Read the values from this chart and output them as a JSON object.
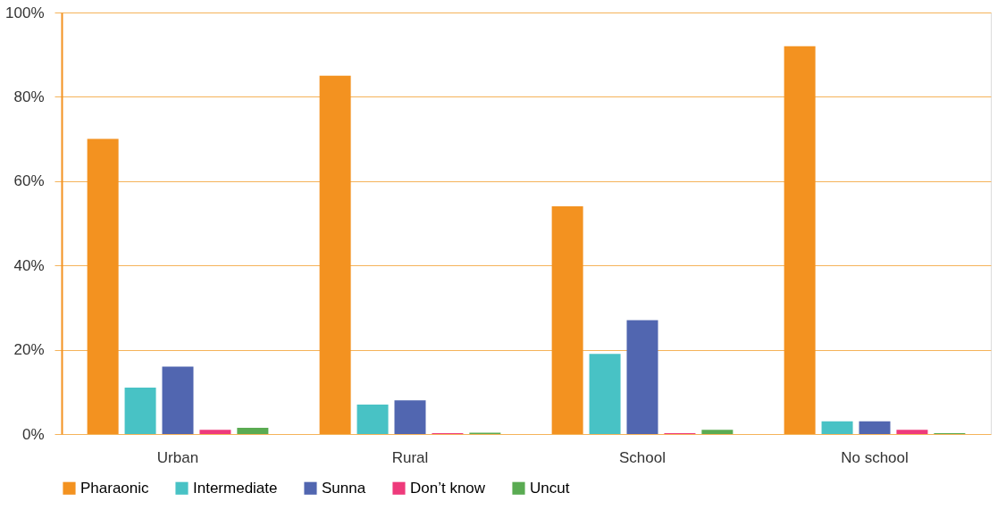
{
  "chart_data": {
    "type": "bar",
    "categories": [
      "Urban",
      "Rural",
      "School",
      "No school"
    ],
    "series": [
      {
        "name": "Pharaonic",
        "color": "#f39220",
        "values": [
          70,
          85,
          54,
          92
        ]
      },
      {
        "name": "Intermediate",
        "color": "#48c2c5",
        "values": [
          11,
          7,
          19,
          3
        ]
      },
      {
        "name": "Sunna",
        "color": "#5166b0",
        "values": [
          16,
          8,
          27,
          3
        ]
      },
      {
        "name": "Don’t know",
        "color": "#ee3a7b",
        "values": [
          1,
          0.2,
          0.2,
          1
        ]
      },
      {
        "name": "Uncut",
        "color": "#5aab52",
        "values": [
          1.5,
          0.3,
          1,
          0.2
        ]
      }
    ],
    "ylim": [
      0,
      100
    ],
    "yticks": [
      {
        "value": 0,
        "label": "0%"
      },
      {
        "value": 20,
        "label": "20%"
      },
      {
        "value": 40,
        "label": "40%"
      },
      {
        "value": 60,
        "label": "60%"
      },
      {
        "value": 80,
        "label": "80%"
      },
      {
        "value": 100,
        "label": "100%"
      }
    ],
    "grid": "y",
    "legend": "bottom"
  }
}
